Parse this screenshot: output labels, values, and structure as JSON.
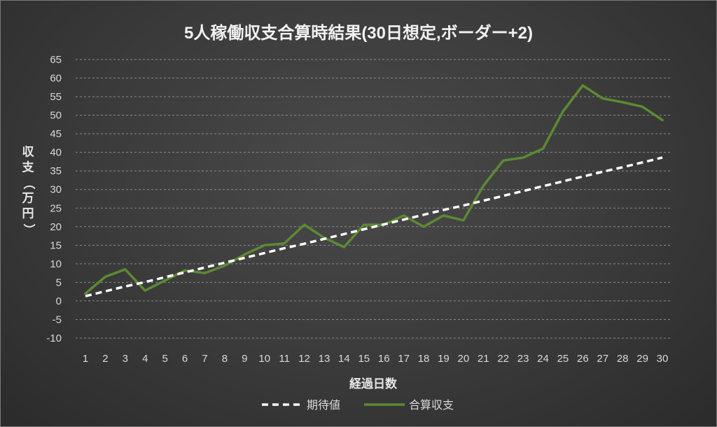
{
  "chart_data": {
    "type": "line",
    "title": "5人稼働収支合算時結果(30日想定,ボーダー+2)",
    "xlabel": "経過日数",
    "ylabel": "収支（万円）",
    "ylim": [
      -10,
      65
    ],
    "ytick_step": 5,
    "x": [
      1,
      2,
      3,
      4,
      5,
      6,
      7,
      8,
      9,
      10,
      11,
      12,
      13,
      14,
      15,
      16,
      17,
      18,
      19,
      20,
      21,
      22,
      23,
      24,
      25,
      26,
      27,
      28,
      29,
      30
    ],
    "series": [
      {
        "name": "期待値",
        "color": "#ffffff",
        "dash": true,
        "values": [
          1.3,
          2.6,
          3.9,
          5.1,
          6.4,
          7.7,
          9.0,
          10.3,
          11.6,
          12.9,
          14.2,
          15.4,
          16.7,
          18.0,
          19.3,
          20.6,
          21.9,
          23.2,
          24.5,
          25.7,
          27.0,
          28.3,
          29.6,
          30.9,
          32.2,
          33.5,
          34.8,
          36.0,
          37.3,
          38.6
        ]
      },
      {
        "name": "合算収支",
        "color": "#5b8a33",
        "dash": false,
        "values": [
          2.0,
          6.5,
          8.5,
          2.8,
          5.5,
          8.2,
          7.5,
          9.5,
          12.5,
          15.0,
          15.5,
          20.5,
          17.0,
          14.5,
          20.5,
          20.5,
          23.0,
          20.0,
          23.0,
          21.7,
          31.0,
          37.8,
          38.6,
          41.0,
          51.0,
          58.0,
          54.5,
          53.5,
          52.3,
          48.7
        ]
      }
    ],
    "grid": true,
    "legend_position": "bottom",
    "negative_tick_color": "#e02020"
  }
}
